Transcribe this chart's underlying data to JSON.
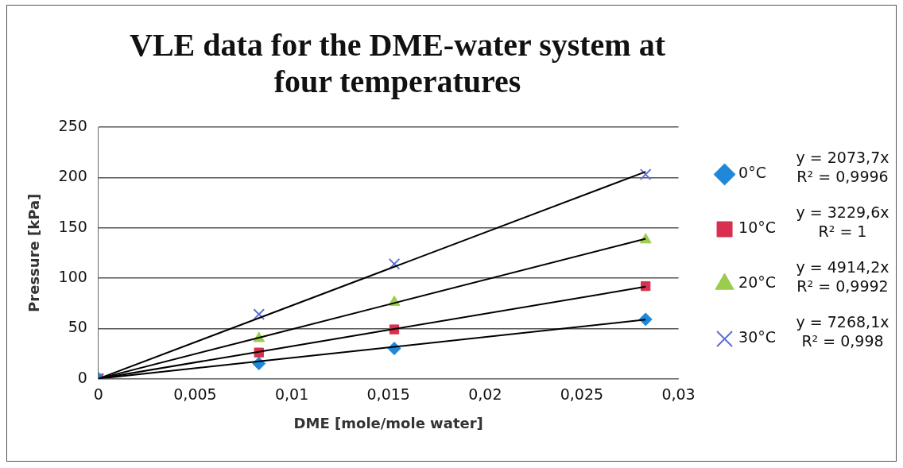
{
  "chart_data": {
    "type": "scatter",
    "title": "VLE data for the DME-water system at four temperatures",
    "xlabel": "DME [mole/mole water]",
    "ylabel": "Pressure [kPa]",
    "x": [
      0,
      0.0083,
      0.0153,
      0.0283
    ],
    "series": [
      {
        "name": "0°C",
        "color": "#1f88d8",
        "marker": "diamond",
        "values": [
          0,
          15,
          30,
          59
        ]
      },
      {
        "name": "10°C",
        "color": "#d9304f",
        "marker": "square",
        "values": [
          0,
          26,
          49,
          92
        ]
      },
      {
        "name": "20°C",
        "color": "#9ccc4e",
        "marker": "triangle",
        "values": [
          0,
          40,
          76,
          138
        ]
      },
      {
        "name": "30°C",
        "color": "#5b6fd6",
        "marker": "cross",
        "values": [
          0,
          64,
          114,
          203
        ]
      },
      {
        "type": "line",
        "color": "#000000",
        "values": [
          0,
          17.2,
          31.7,
          58.7
        ]
      },
      {
        "type": "line",
        "color": "#000000",
        "values": [
          0,
          26.8,
          49.4,
          91.4
        ]
      },
      {
        "type": "line",
        "color": "#000000",
        "values": [
          0,
          40.8,
          75.2,
          139.1
        ]
      },
      {
        "type": "line",
        "color": "#000000",
        "values": [
          0,
          60.3,
          111.2,
          205.7
        ]
      }
    ],
    "annotations": [
      "y = 2073,7x\nR² = 0,9996",
      "y = 3229,6x\nR² = 1",
      "y = 4914,2x\nR² = 0,9992",
      "y = 7268,1x\nR² = 0,998"
    ],
    "xlim": [
      0,
      0.03
    ],
    "xticks": [
      0,
      {
        "value": 0.005,
        "label": "0,005"
      },
      {
        "value": 0.01,
        "label": "0,01"
      },
      {
        "value": 0.015,
        "label": "0,015"
      },
      {
        "value": 0.02,
        "label": "0,02"
      },
      {
        "value": 0.025,
        "label": "0,025"
      },
      {
        "value": 0.03,
        "label": "0,03"
      }
    ],
    "ylim": [
      0,
      250
    ],
    "yticks": [
      0,
      50,
      100,
      150,
      200,
      250
    ],
    "grid": "y",
    "legend": "right"
  }
}
